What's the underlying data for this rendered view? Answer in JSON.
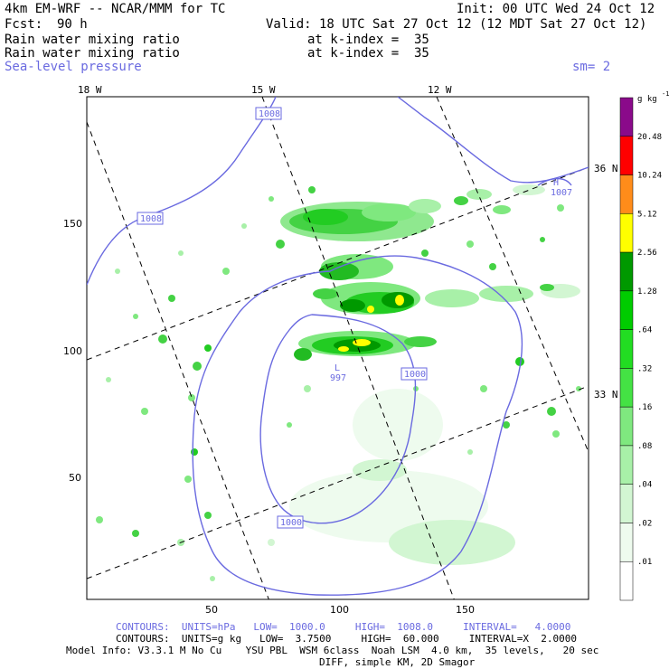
{
  "header": {
    "model_title": "4km EM-WRF -- NCAR/MMM for TC",
    "init": "Init: 00 UTC Wed 24 Oct 12",
    "fcst_label": "Fcst:",
    "fcst_value": "90 h",
    "valid": "Valid: 18 UTC Sat 27 Oct 12 (12 MDT Sat 27 Oct 12)",
    "field1": "Rain water mixing ratio",
    "field1_level": "at k-index =  35",
    "field2": "Rain water mixing ratio",
    "field2_level": "at k-index =  35",
    "field3": "Sea-level pressure",
    "smoothing": "sm= 2"
  },
  "map": {
    "lon_labels": [
      "18 W",
      "15 W",
      "12 W"
    ],
    "lat_labels": [
      "36 N",
      "33 N"
    ],
    "x_ticks": [
      "50",
      "100",
      "150"
    ],
    "y_ticks": [
      "150",
      "100",
      "50"
    ],
    "pressure_labels": [
      "1008",
      "1008",
      "1007",
      "1000",
      "1000",
      "997"
    ],
    "low_marker": "L",
    "high_marker": "H"
  },
  "colorbar": {
    "unit": "g kg",
    "unit_exp": "-1",
    "labels": [
      "20.48",
      "10.24",
      "5.12",
      "2.56",
      "1.28",
      ".64",
      ".32",
      ".16",
      ".08",
      ".04",
      ".02",
      ".01"
    ],
    "colors": [
      "#8a0a8a",
      "#ff0000",
      "#ff8c1a",
      "#ffff00",
      "#009900",
      "#00cc00",
      "#22dd22",
      "#44e244",
      "#7fe87f",
      "#a8f0a8",
      "#d2f6d2",
      "#eefbee",
      "#ffffff"
    ]
  },
  "footer": {
    "line1": "CONTOURS:  UNITS=hPa   LOW=  1000.0     HIGH=  1008.0     INTERVAL=   4.0000",
    "line2": "CONTOURS:  UNITS=g kg   LOW=  3.7500     HIGH=  60.000     INTERVAL=X  2.0000",
    "line3": "Model Info: V3.3.1 M No Cu    YSU PBL  WSM 6class  Noah LSM  4.0 km,  35 levels,   20 sec",
    "line4": "DIFF, simple KM, 2D Smagor"
  }
}
